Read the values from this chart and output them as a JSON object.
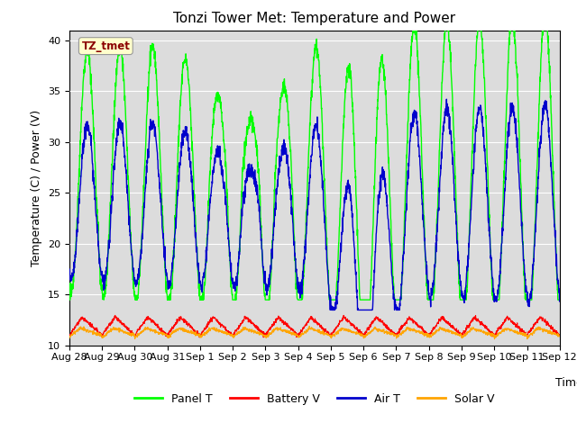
{
  "title": "Tonzi Tower Met: Temperature and Power",
  "ylabel": "Temperature (C) / Power (V)",
  "xlabel": "Time",
  "annotation": "TZ_tmet",
  "annotation_color": "#8B0000",
  "annotation_bg": "#FFFFCC",
  "ylim": [
    10,
    41
  ],
  "yticks": [
    10,
    15,
    20,
    25,
    30,
    35,
    40
  ],
  "colors": {
    "panel_t": "#00FF00",
    "battery_v": "#FF0000",
    "air_t": "#0000CC",
    "solar_v": "#FFA500"
  },
  "legend_labels": [
    "Panel T",
    "Battery V",
    "Air T",
    "Solar V"
  ],
  "bg_color": "#DCDCDC",
  "x_tick_labels": [
    "Aug 28",
    "Aug 29",
    "Aug 30",
    "Aug 31",
    "Sep 1",
    "Sep 2",
    "Sep 3",
    "Sep 4",
    "Sep 5",
    "Sep 6",
    "Sep 7",
    "Sep 8",
    "Sep 9",
    "Sep 10",
    "Sep 11",
    "Sep 12"
  ],
  "n_days": 15,
  "points_per_day": 144
}
